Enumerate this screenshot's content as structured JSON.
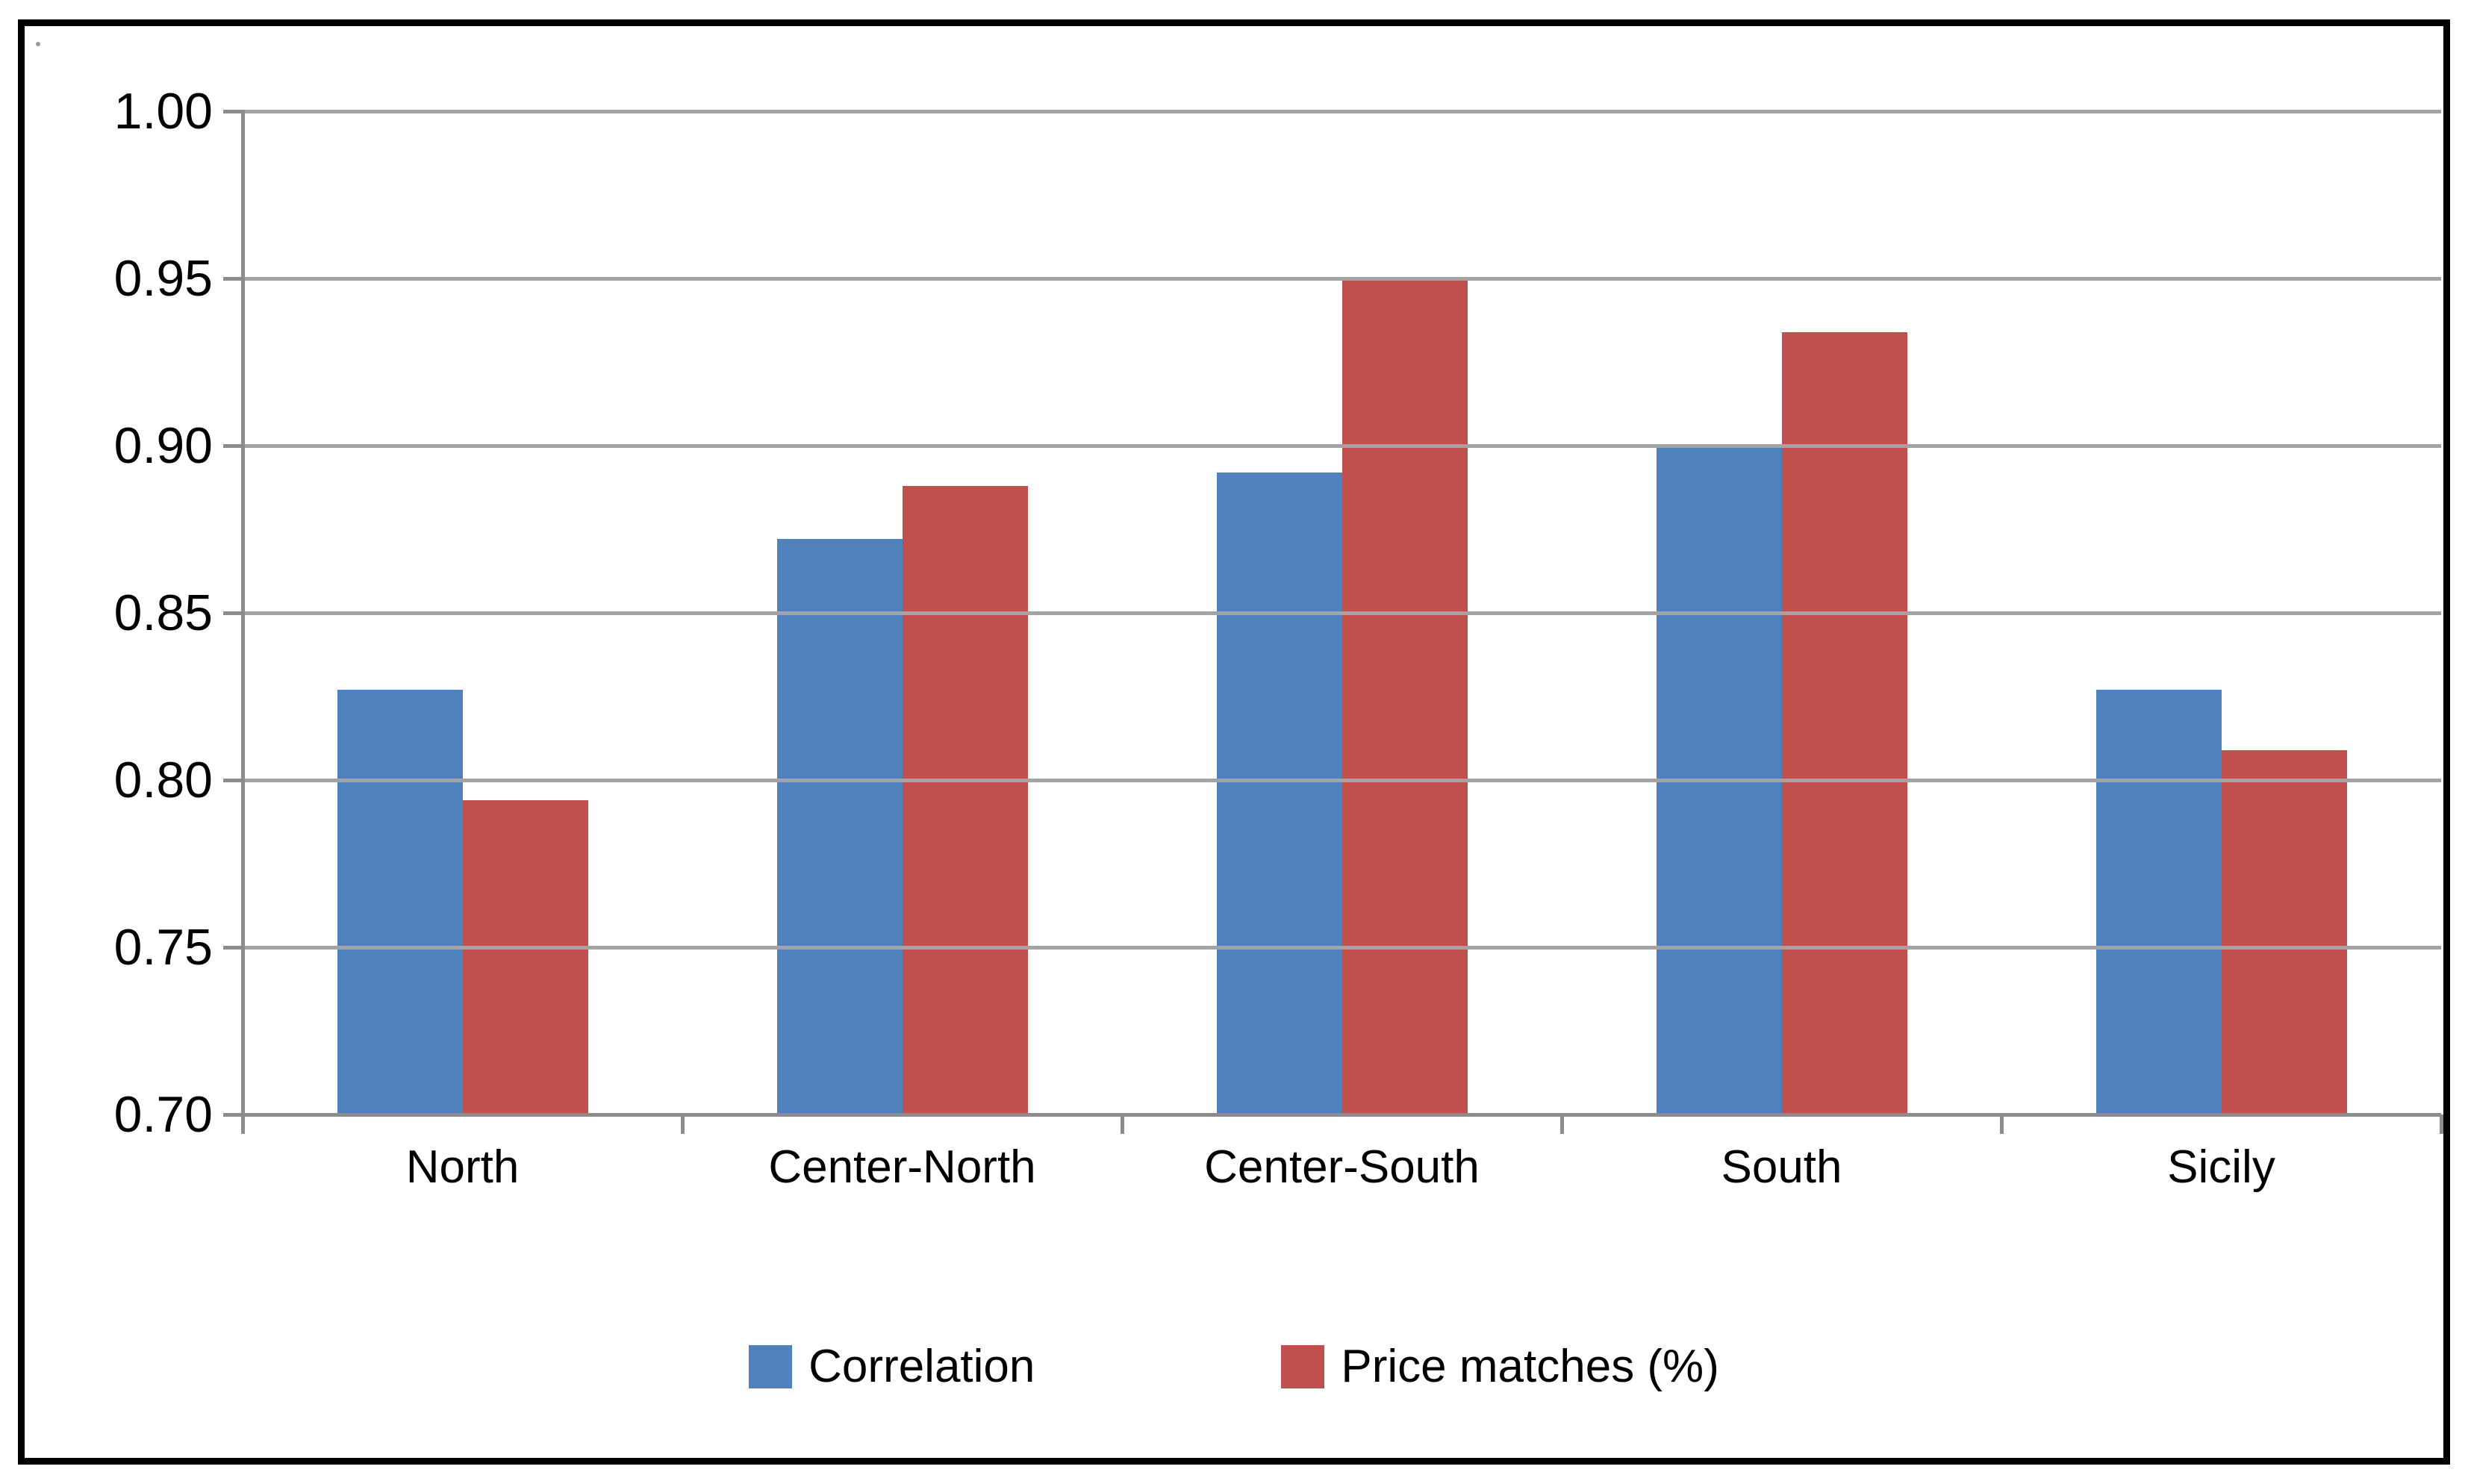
{
  "chart_data": {
    "type": "bar",
    "title": "",
    "categories": [
      "North",
      "Center-North",
      "Center-South",
      "South",
      "Sicily"
    ],
    "series": [
      {
        "name": "Correlation",
        "color": "#4F81BD",
        "values": [
          0.827,
          0.872,
          0.892,
          0.9,
          0.827
        ]
      },
      {
        "name": "Price matches (%)",
        "color": "#C0504D",
        "values": [
          0.794,
          0.888,
          0.95,
          0.934,
          0.809
        ]
      }
    ],
    "xlabel": "",
    "ylabel": "",
    "ylim": [
      0.7,
      1.0
    ],
    "ytick_labels": [
      "1.00",
      "0.95",
      "0.90",
      "0.85",
      "0.80",
      "0.75",
      "0.70"
    ],
    "ytick_values": [
      1.0,
      0.95,
      0.9,
      0.85,
      0.8,
      0.75,
      0.7
    ],
    "grid": true,
    "legend_position": "bottom"
  },
  "colors": {
    "series_blue": "#4F81BD",
    "series_red": "#C0504D",
    "gridline": "#A3A3A3",
    "axis": "#8C8C8C",
    "border": "#000000",
    "background": "#FFFFFF",
    "text": "#000000"
  }
}
